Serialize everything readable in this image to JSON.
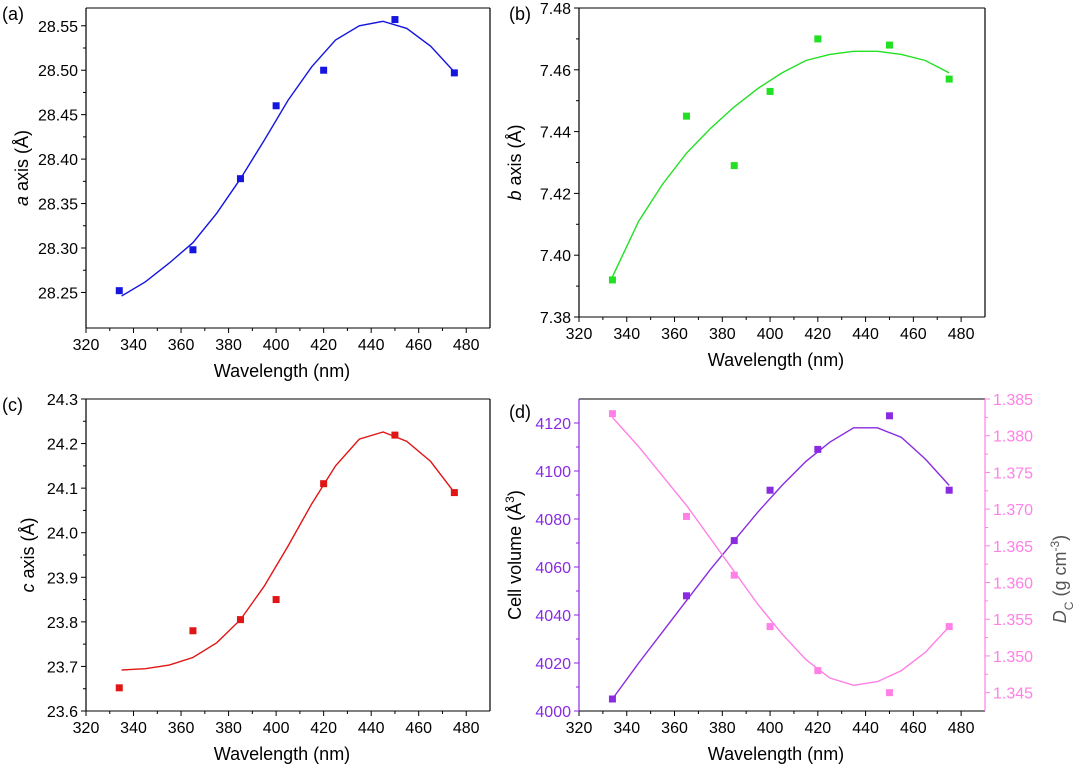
{
  "chart_data": [
    {
      "id": "a",
      "panel_label": "(a)",
      "type": "scatter",
      "xlabel": "Wavelength (nm)",
      "ylabel_italic": "a",
      "ylabel": " axis (Å)",
      "xlim": [
        320,
        490
      ],
      "ylim": [
        28.21,
        28.57
      ],
      "xticks": [
        320,
        340,
        360,
        380,
        400,
        420,
        440,
        460,
        480
      ],
      "yticks": [
        28.25,
        28.3,
        28.35,
        28.4,
        28.45,
        28.5,
        28.55
      ],
      "ytick_decimals": 2,
      "color": "#1515e0",
      "x": [
        334,
        365,
        385,
        400,
        420,
        450,
        475
      ],
      "y": [
        28.252,
        28.298,
        28.378,
        28.46,
        28.5,
        28.557,
        28.497
      ],
      "fit_x": [
        335,
        345,
        355,
        365,
        375,
        385,
        395,
        405,
        415,
        425,
        435,
        445,
        455,
        465,
        475
      ],
      "fit_y": [
        28.246,
        28.262,
        28.283,
        28.306,
        28.339,
        28.378,
        28.421,
        28.466,
        28.504,
        28.534,
        28.55,
        28.555,
        28.547,
        28.527,
        28.498
      ]
    },
    {
      "id": "b",
      "panel_label": "(b)",
      "type": "scatter",
      "xlabel": "Wavelength (nm)",
      "ylabel_italic": "b",
      "ylabel": " axis (Å)",
      "xlim": [
        320,
        490
      ],
      "ylim": [
        7.38,
        7.48
      ],
      "xticks": [
        320,
        340,
        360,
        380,
        400,
        420,
        440,
        460,
        480
      ],
      "yticks": [
        7.38,
        7.4,
        7.42,
        7.44,
        7.46,
        7.48
      ],
      "ytick_decimals": 2,
      "color": "#22e022",
      "x": [
        334,
        365,
        385,
        400,
        420,
        450,
        475
      ],
      "y": [
        7.392,
        7.445,
        7.429,
        7.453,
        7.47,
        7.468,
        7.457
      ],
      "fit_x": [
        334,
        345,
        355,
        365,
        375,
        385,
        395,
        405,
        415,
        425,
        435,
        445,
        455,
        465,
        475
      ],
      "fit_y": [
        7.393,
        7.411,
        7.423,
        7.433,
        7.441,
        7.448,
        7.454,
        7.459,
        7.463,
        7.465,
        7.466,
        7.466,
        7.465,
        7.463,
        7.459
      ]
    },
    {
      "id": "c",
      "panel_label": "(c)",
      "type": "scatter",
      "xlabel": "Wavelength (nm)",
      "ylabel_italic": "c",
      "ylabel": " axis (Å)",
      "xlim": [
        320,
        490
      ],
      "ylim": [
        23.6,
        24.3
      ],
      "xticks": [
        320,
        340,
        360,
        380,
        400,
        420,
        440,
        460,
        480
      ],
      "yticks": [
        23.6,
        23.7,
        23.8,
        23.9,
        24.0,
        24.1,
        24.2,
        24.3
      ],
      "ytick_decimals": 1,
      "color": "#e01515",
      "x": [
        334,
        365,
        385,
        400,
        420,
        450,
        475
      ],
      "y": [
        23.652,
        23.78,
        23.805,
        23.85,
        24.11,
        24.219,
        24.09
      ],
      "fit_x": [
        335,
        345,
        355,
        365,
        375,
        385,
        395,
        405,
        415,
        425,
        435,
        445,
        455,
        465,
        475
      ],
      "fit_y": [
        23.692,
        23.695,
        23.703,
        23.72,
        23.753,
        23.805,
        23.88,
        23.97,
        24.065,
        24.15,
        24.21,
        24.226,
        24.205,
        24.16,
        24.09
      ]
    },
    {
      "id": "d",
      "panel_label": "(d)",
      "type": "scatter",
      "xlabel": "Wavelength (nm)",
      "ylabel": "Cell volume (Å",
      "ylabel_sup": "3",
      "ylabel_end": ")",
      "y2label_italic": "D",
      "y2label_sub": "C",
      "y2label": " (g cm",
      "y2label_sup": "-3",
      "y2label_end": ")",
      "xlim": [
        320,
        490
      ],
      "ylim": [
        4000,
        4130
      ],
      "y2lim": [
        1.3425,
        1.385
      ],
      "xticks": [
        320,
        340,
        360,
        380,
        400,
        420,
        440,
        460,
        480
      ],
      "yticks": [
        4000,
        4020,
        4040,
        4060,
        4080,
        4100,
        4120
      ],
      "y2ticks": [
        1.345,
        1.35,
        1.355,
        1.36,
        1.365,
        1.37,
        1.375,
        1.38,
        1.385
      ],
      "ytick_decimals": 0,
      "y2tick_decimals": 3,
      "color": "#8a2be2",
      "color2": "#ff80e6",
      "series": [
        {
          "axis": "left",
          "x": [
            334,
            365,
            385,
            400,
            420,
            450,
            475
          ],
          "y": [
            4005,
            4048,
            4071,
            4092,
            4109,
            4123,
            4092
          ],
          "fit_x": [
            334,
            345,
            355,
            365,
            375,
            385,
            395,
            405,
            415,
            425,
            435,
            445,
            455,
            465,
            475
          ],
          "fit_y": [
            4005,
            4020,
            4033,
            4046,
            4059,
            4071,
            4083,
            4094,
            4104,
            4112,
            4118,
            4118,
            4114,
            4105,
            4094
          ]
        },
        {
          "axis": "right",
          "x": [
            334,
            365,
            385,
            400,
            420,
            450,
            475
          ],
          "y": [
            1.383,
            1.369,
            1.361,
            1.354,
            1.348,
            1.345,
            1.354
          ],
          "fit_x": [
            334,
            345,
            355,
            365,
            375,
            385,
            395,
            405,
            415,
            425,
            435,
            445,
            455,
            465,
            475
          ],
          "fit_y": [
            1.3825,
            1.3785,
            1.3745,
            1.3705,
            1.366,
            1.3615,
            1.357,
            1.353,
            1.3495,
            1.347,
            1.346,
            1.3465,
            1.348,
            1.3505,
            1.354
          ]
        }
      ]
    }
  ]
}
